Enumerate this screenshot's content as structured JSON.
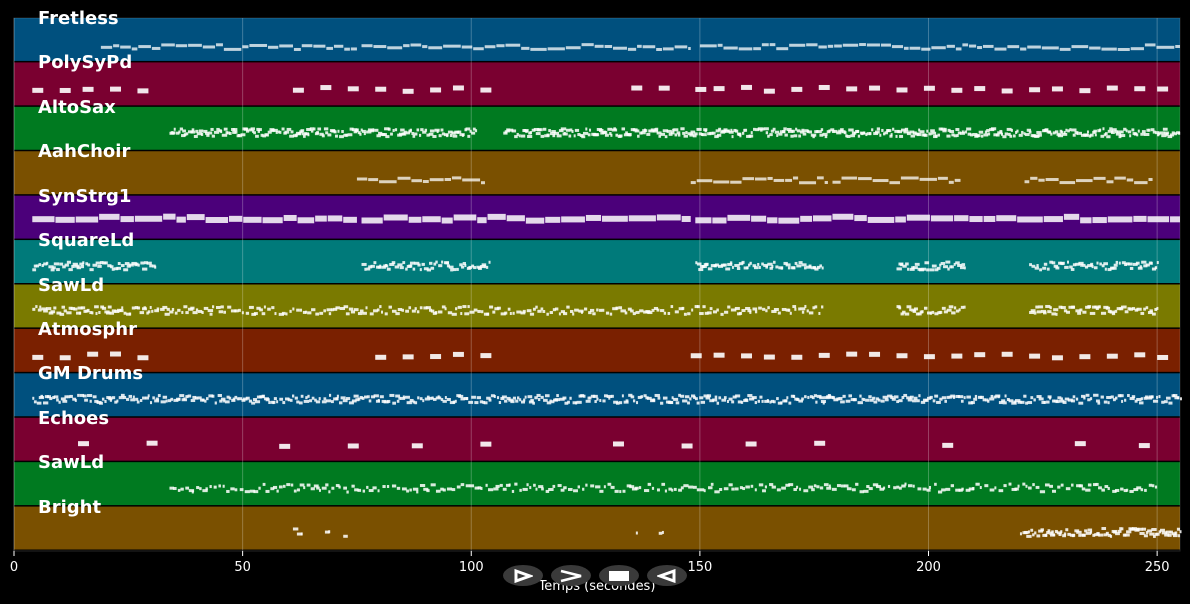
{
  "chart_data": {
    "type": "piano-roll",
    "xlabel": "Temps (secondes)",
    "xlim": [
      0,
      255
    ],
    "xticks": [
      0,
      50,
      100,
      150,
      200,
      250
    ],
    "grid": true,
    "tracks": [
      {
        "name": "Fretless",
        "color": "#00507e",
        "style": "line",
        "segments": [
          [
            19,
            75,
            3
          ],
          [
            76,
            148,
            3
          ],
          [
            150,
            255,
            3
          ]
        ]
      },
      {
        "name": "PolySyPd",
        "color": "#7a0030",
        "style": "block",
        "notes": [
          5,
          11,
          16,
          22,
          28,
          62,
          68,
          74,
          80,
          86,
          92,
          97,
          103,
          136,
          142,
          150,
          154,
          160,
          165,
          171,
          177,
          183,
          188,
          194,
          200,
          206,
          211,
          217,
          223,
          228,
          234,
          240,
          246,
          251
        ]
      },
      {
        "name": "AltoSax",
        "color": "#007a20",
        "style": "dense",
        "segments": [
          [
            34,
            101,
            2.5
          ],
          [
            107,
            255,
            2.5
          ]
        ]
      },
      {
        "name": "AahChoir",
        "color": "#7a5000",
        "style": "line",
        "segments": [
          [
            75,
            103,
            1.5
          ],
          [
            148,
            178,
            1.5
          ],
          [
            179,
            207,
            1
          ],
          [
            221,
            249,
            1.5
          ]
        ]
      },
      {
        "name": "SynStrg1",
        "color": "#4b007a",
        "style": "thick",
        "segments": [
          [
            4,
            75,
            1
          ],
          [
            76,
            148,
            1
          ],
          [
            149,
            255,
            1
          ]
        ]
      },
      {
        "name": "SquareLd",
        "color": "#007a7a",
        "style": "dense",
        "segments": [
          [
            4,
            31,
            2
          ],
          [
            76,
            104,
            2
          ],
          [
            149,
            177,
            2
          ],
          [
            193,
            208,
            2
          ],
          [
            222,
            250,
            2
          ]
        ]
      },
      {
        "name": "SawLd",
        "color": "#7a7a00",
        "style": "dense",
        "segments": [
          [
            4,
            30,
            2
          ],
          [
            30,
            177,
            1.5
          ],
          [
            193,
            208,
            2
          ],
          [
            222,
            250,
            2
          ]
        ]
      },
      {
        "name": "Atmosphr",
        "color": "#7a2000",
        "style": "block",
        "notes": [
          5,
          11,
          17,
          22,
          28,
          80,
          86,
          92,
          97,
          103,
          149,
          154,
          160,
          165,
          171,
          177,
          183,
          188,
          194,
          200,
          206,
          211,
          217,
          223,
          228,
          234,
          240,
          246,
          251
        ]
      },
      {
        "name": "GM Drums",
        "color": "#00507e",
        "style": "dense",
        "segments": [
          [
            4,
            255,
            2
          ]
        ]
      },
      {
        "name": "Echoes",
        "color": "#7a0030",
        "style": "block",
        "notes": [
          15,
          30,
          59,
          74,
          88,
          103,
          132,
          147,
          161,
          176,
          204,
          233,
          247
        ]
      },
      {
        "name": "SawLd",
        "color": "#007a20",
        "style": "sparse",
        "segments": [
          [
            34,
            250,
            1.2
          ]
        ]
      },
      {
        "name": "Bright",
        "color": "#7a5000",
        "style": "dense",
        "segments": [
          [
            61,
            63,
            1
          ],
          [
            68,
            69,
            1
          ],
          [
            72,
            73,
            1
          ],
          [
            136,
            137,
            1
          ],
          [
            141,
            142,
            1
          ],
          [
            220,
            255,
            2.5
          ]
        ]
      }
    ]
  },
  "controls": [
    {
      "name": "play",
      "glyph": "▷"
    },
    {
      "name": "forward",
      "glyph": ">"
    },
    {
      "name": "stop",
      "glyph": "■"
    },
    {
      "name": "rewind",
      "glyph": "◁"
    }
  ]
}
